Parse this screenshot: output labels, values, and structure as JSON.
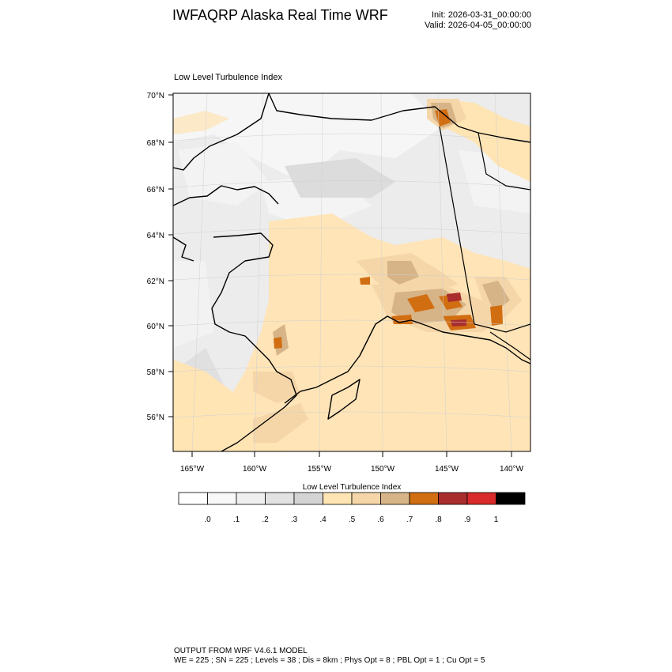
{
  "header": {
    "title": "IWFAQRP Alaska Real Time WRF",
    "init": "Init: 2026-03-31_00:00:00",
    "valid": "Valid: 2026-04-05_00:00:00"
  },
  "map": {
    "field_title": "Low Level Turbulence Index",
    "lat_labels": [
      "70°N",
      "68°N",
      "66°N",
      "64°N",
      "62°N",
      "60°N",
      "58°N",
      "56°N"
    ],
    "lon_labels": [
      "165°W",
      "160°W",
      "155°W",
      "150°W",
      "145°W",
      "140°W"
    ]
  },
  "colorbar": {
    "title": "Low Level Turbulence Index",
    "colors": [
      "#ffffff",
      "#f8f8f8",
      "#efefef",
      "#e2e2e2",
      "#d4d4d4",
      "#ffe4b4",
      "#f5d6a8",
      "#d6b487",
      "#d26e12",
      "#aa2d2d",
      "#d82a2a",
      "#000000"
    ],
    "labels": [
      ".0",
      ".1",
      ".2",
      ".3",
      ".4",
      ".5",
      ".6",
      ".7",
      ".8",
      ".9",
      "1"
    ]
  },
  "footer": {
    "line1": "OUTPUT FROM WRF V4.6.1 MODEL",
    "line2": "WE = 225 ; SN = 225 ; Levels = 38 ; Dis = 8km ; Phys Opt = 8 ; PBL Opt = 1 ; Cu Opt = 5"
  }
}
